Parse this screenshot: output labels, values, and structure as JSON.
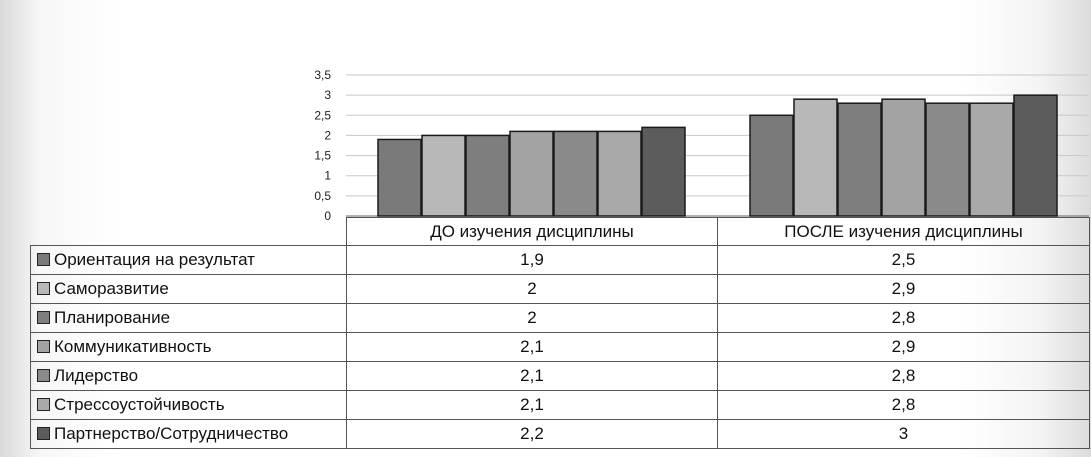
{
  "chart_data": {
    "type": "bar",
    "categories": [
      "ДО изучения  дисциплины",
      "ПОСЛЕ изучения дисциплины"
    ],
    "series": [
      {
        "name": "Ориентация на результат",
        "values": [
          1.9,
          2.5
        ],
        "color": "#7a7a7a"
      },
      {
        "name": "Саморазвитие",
        "values": [
          2,
          2.9
        ],
        "color": "#b8b8b8"
      },
      {
        "name": "Планирование",
        "values": [
          2,
          2.8
        ],
        "color": "#7e7e7e"
      },
      {
        "name": "Коммуникативность",
        "values": [
          2.1,
          2.9
        ],
        "color": "#a3a3a3"
      },
      {
        "name": "Лидерство",
        "values": [
          2.1,
          2.8
        ],
        "color": "#8a8a8a"
      },
      {
        "name": "Стрессоустойчивость",
        "values": [
          2.1,
          2.8
        ],
        "color": "#a9a9a9"
      },
      {
        "name": "Партнерство/Сотрудничество",
        "values": [
          2.2,
          3
        ],
        "color": "#5c5c5c"
      }
    ],
    "table_values": [
      [
        "1,9",
        "2,5"
      ],
      [
        "2",
        "2,9"
      ],
      [
        "2",
        "2,8"
      ],
      [
        "2,1",
        "2,9"
      ],
      [
        "2,1",
        "2,8"
      ],
      [
        "2,1",
        "2,8"
      ],
      [
        "2,2",
        "3"
      ]
    ],
    "y_ticks": [
      "0",
      "0,5",
      "1",
      "1,5",
      "2",
      "2,5",
      "3",
      "3,5"
    ],
    "ylim": [
      0,
      3.5
    ],
    "grid": true,
    "legend": "data-table"
  }
}
